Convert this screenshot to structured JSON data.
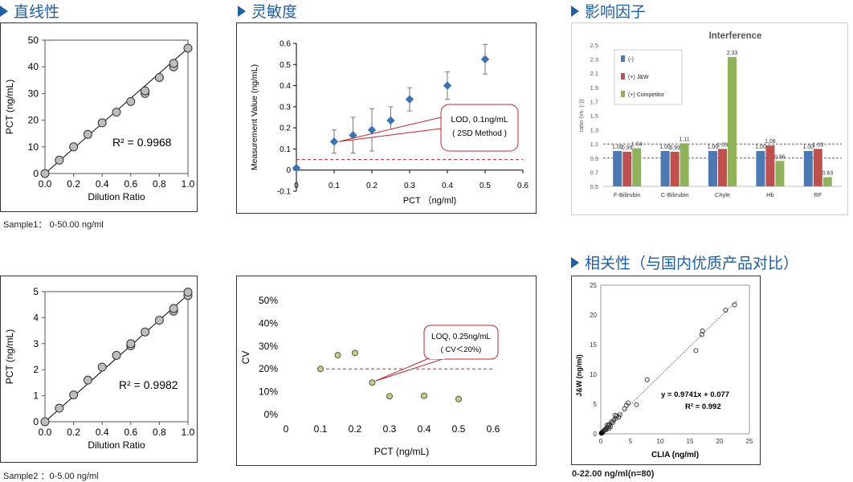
{
  "headings": {
    "linearity": "直线性",
    "sensitivity": "灵敏度",
    "interference": "影响因子",
    "correlation": "相关性（与国内优质产品对比）"
  },
  "captions": {
    "sample1": "Sample1： 0-50.00 ng/ml",
    "sample2": "Sample2 ：0-5.00 ng/ml",
    "correlation": "0-22.00 ng/ml(n=80)"
  },
  "colors": {
    "heading": "#1f5fa5",
    "diamond": "#3a72b8",
    "red_dash": "#d9252b",
    "callout": "#c0272d",
    "blue_bar": "#4a79b6",
    "red_bar": "#c0504d",
    "green_bar": "#8fb35a",
    "marker_fill": "#c6cf7a"
  },
  "chart_data": [
    {
      "id": "linearity1",
      "type": "scatter",
      "xlabel": "Dilution Ratio",
      "ylabel": "PCT (ng/mL)",
      "xlim": [
        0,
        1
      ],
      "ylim": [
        0,
        50
      ],
      "xticks": [
        "0.0",
        "0.2",
        "0.4",
        "0.6",
        "0.8",
        "1.0"
      ],
      "xtick_values": [
        0,
        0.2,
        0.4,
        0.6,
        0.8,
        1.0
      ],
      "yticks": [
        "0",
        "10",
        "20",
        "30",
        "40",
        "50"
      ],
      "ytick_values": [
        0,
        10,
        20,
        30,
        40,
        50
      ],
      "annotation": "R² = 0.9968",
      "points": [
        [
          0,
          0
        ],
        [
          0.1,
          5
        ],
        [
          0.2,
          10
        ],
        [
          0.3,
          14.7
        ],
        [
          0.4,
          19
        ],
        [
          0.5,
          23
        ],
        [
          0.6,
          27
        ],
        [
          0.7,
          30
        ],
        [
          0.7,
          31
        ],
        [
          0.8,
          36
        ],
        [
          0.9,
          40
        ],
        [
          0.9,
          41.3
        ],
        [
          1.0,
          47
        ]
      ],
      "fit": [
        [
          0,
          0
        ],
        [
          1.0,
          47
        ]
      ]
    },
    {
      "id": "linearity2",
      "type": "scatter",
      "xlabel": "Dilution Ratio",
      "ylabel": "PCT (ng/mL)",
      "xlim": [
        0,
        1
      ],
      "ylim": [
        0,
        5
      ],
      "xticks": [
        "0.0",
        "0.2",
        "0.4",
        "0.6",
        "0.8",
        "1.0"
      ],
      "xtick_values": [
        0,
        0.2,
        0.4,
        0.6,
        0.8,
        1.0
      ],
      "yticks": [
        "0",
        "1",
        "2",
        "3",
        "4",
        "5"
      ],
      "ytick_values": [
        0,
        1,
        2,
        3,
        4,
        5
      ],
      "annotation": "R² = 0.9982",
      "points": [
        [
          0,
          0
        ],
        [
          0.1,
          0.52
        ],
        [
          0.2,
          1.03
        ],
        [
          0.3,
          1.6
        ],
        [
          0.4,
          2.1
        ],
        [
          0.5,
          2.55
        ],
        [
          0.6,
          2.92
        ],
        [
          0.6,
          3.0
        ],
        [
          0.7,
          3.45
        ],
        [
          0.8,
          3.9
        ],
        [
          0.9,
          4.25
        ],
        [
          0.9,
          4.35
        ],
        [
          1.0,
          4.85
        ],
        [
          1.0,
          4.98
        ]
      ],
      "fit": [
        [
          0,
          0
        ],
        [
          1.0,
          4.88
        ]
      ]
    },
    {
      "id": "sensitivity",
      "type": "scatter",
      "xlabel": "PCT （ng/ml)",
      "ylabel": "Measurement Value (ng/mL)",
      "xlim": [
        0,
        0.6
      ],
      "ylim": [
        -0.1,
        0.6
      ],
      "xticks": [
        "0",
        "0.1",
        "0.2",
        "0.3",
        "0.4",
        "0.5",
        "0.6"
      ],
      "xtick_values": [
        0,
        0.1,
        0.2,
        0.3,
        0.4,
        0.5,
        0.6
      ],
      "yticks": [
        "-0.1",
        "0",
        "0.1",
        "0.2",
        "0.3",
        "0.4",
        "0.5",
        "0.6"
      ],
      "ytick_values": [
        -0.1,
        0,
        0.1,
        0.2,
        0.3,
        0.4,
        0.5,
        0.6
      ],
      "reference_y": 0.05,
      "callout": [
        "LOD, 0.1ng/mL",
        "( 2SD Method )"
      ],
      "points": [
        {
          "x": 0,
          "y": 0.01,
          "err": 0
        },
        {
          "x": 0.1,
          "y": 0.135,
          "err": 0.055
        },
        {
          "x": 0.15,
          "y": 0.165,
          "err": 0.085
        },
        {
          "x": 0.2,
          "y": 0.19,
          "err": 0.1
        },
        {
          "x": 0.25,
          "y": 0.235,
          "err": 0.065
        },
        {
          "x": 0.3,
          "y": 0.335,
          "err": 0.055
        },
        {
          "x": 0.4,
          "y": 0.4,
          "err": 0.065
        },
        {
          "x": 0.5,
          "y": 0.525,
          "err": 0.07
        }
      ]
    },
    {
      "id": "loq",
      "type": "scatter",
      "xlabel": "PCT (ng/mL)",
      "ylabel": "CV",
      "xlim": [
        0,
        0.6
      ],
      "ylim": [
        0,
        0.5
      ],
      "xticks": [
        "0",
        "0.1",
        "0.2",
        "0.3",
        "0.4",
        "0.5",
        "0.6"
      ],
      "xtick_values": [
        0,
        0.1,
        0.2,
        0.3,
        0.4,
        0.5,
        0.6
      ],
      "yticks": [
        "0%",
        "10%",
        "20%",
        "30%",
        "40%",
        "50%"
      ],
      "ytick_values": [
        0,
        0.1,
        0.2,
        0.3,
        0.4,
        0.5
      ],
      "reference_y": 0.2,
      "callout": [
        "LOQ, 0.25ng/mL",
        "( CV＜20%)"
      ],
      "points": [
        [
          0.1,
          0.2
        ],
        [
          0.15,
          0.26
        ],
        [
          0.2,
          0.27
        ],
        [
          0.25,
          0.14
        ],
        [
          0.3,
          0.08
        ],
        [
          0.4,
          0.082
        ],
        [
          0.5,
          0.068
        ]
      ]
    },
    {
      "id": "interference",
      "type": "bar",
      "title": "Interference",
      "ylabel": "ratio (vs. (-))",
      "ylim": [
        0.5,
        2.5
      ],
      "yticks": [
        "0.5",
        "0.7",
        "0.9",
        "1.1",
        "1.3",
        "1.5",
        "1.7",
        "1.9",
        "2.1",
        "2.3",
        "2.5"
      ],
      "ytick_values": [
        0.5,
        0.7,
        0.9,
        1.1,
        1.3,
        1.5,
        1.7,
        1.9,
        2.1,
        2.3,
        2.5
      ],
      "reference_lines": [
        0.9,
        1.1
      ],
      "categories": [
        "F-Bilirubin",
        "C-Bilirubin",
        "Chyle",
        "Hb",
        "RF"
      ],
      "series": [
        {
          "name": "(-)",
          "values": [
            1.0,
            1.0,
            1.0,
            1.0,
            1.0
          ],
          "labels": [
            "1.00",
            "1.00",
            "1.00",
            "1.00",
            "1.00"
          ]
        },
        {
          "name": "(+) J&W",
          "values": [
            0.99,
            0.99,
            1.03,
            1.08,
            1.03
          ],
          "labels": [
            "0.99",
            "0.99",
            "1.03",
            "1.08",
            "1.03"
          ]
        },
        {
          "name": "(+) Competitor",
          "values": [
            1.04,
            1.11,
            2.33,
            0.86,
            0.63
          ],
          "labels": [
            "1.04",
            "1.11",
            "2.33",
            "0.86",
            "0.63"
          ]
        }
      ]
    },
    {
      "id": "correlation",
      "type": "scatter",
      "xlabel": "CLIA (ng/ml)",
      "ylabel": "J&W (ng/ml)",
      "xlim": [
        0,
        25
      ],
      "ylim": [
        0,
        25
      ],
      "xticks": [
        "0",
        "5",
        "10",
        "15",
        "20",
        "25"
      ],
      "xtick_values": [
        0,
        5,
        10,
        15,
        20,
        25
      ],
      "yticks": [
        "0",
        "5",
        "10",
        "15",
        "20",
        "25"
      ],
      "ytick_values": [
        0,
        5,
        10,
        15,
        20,
        25
      ],
      "equation": [
        "y = 0.9741x + 0.077",
        "R² = 0.992"
      ],
      "fit": [
        [
          0,
          0.077
        ],
        [
          23,
          22.48
        ]
      ],
      "points": [
        [
          0.1,
          0.1
        ],
        [
          0.2,
          0.2
        ],
        [
          0.3,
          0.3
        ],
        [
          0.4,
          0.4
        ],
        [
          0.5,
          0.5
        ],
        [
          0.3,
          0.2
        ],
        [
          0.6,
          0.6
        ],
        [
          0.8,
          0.8
        ],
        [
          0.9,
          0.7
        ],
        [
          1.0,
          1.0
        ],
        [
          1.2,
          1.1
        ],
        [
          1.3,
          1.4
        ],
        [
          1.5,
          1.6
        ],
        [
          1.6,
          1.2
        ],
        [
          1.8,
          2.0
        ],
        [
          2.0,
          1.9
        ],
        [
          2.2,
          2.3
        ],
        [
          2.5,
          2.6
        ],
        [
          2.7,
          3.0
        ],
        [
          3.0,
          2.8
        ],
        [
          3.2,
          3.2
        ],
        [
          1.1,
          1.5
        ],
        [
          1.4,
          0.9
        ],
        [
          2.4,
          3.1
        ],
        [
          4.0,
          4.2
        ],
        [
          4.3,
          4.8
        ],
        [
          4.6,
          5.2
        ],
        [
          6.0,
          4.9
        ],
        [
          7.8,
          9.1
        ],
        [
          16.0,
          14.0
        ],
        [
          17.0,
          16.7
        ],
        [
          17.1,
          17.3
        ],
        [
          21.0,
          20.8
        ],
        [
          22.5,
          21.7
        ]
      ]
    }
  ]
}
